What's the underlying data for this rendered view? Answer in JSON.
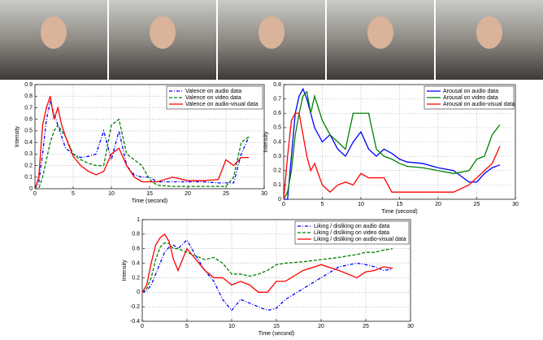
{
  "chart_data": [
    {
      "type": "line",
      "xlabel": "Time (second)",
      "ylabel": "Intensity",
      "x": [
        0,
        0.5,
        1,
        1.5,
        2,
        2.5,
        3,
        3.5,
        4,
        5,
        6,
        7,
        8,
        9,
        10,
        11,
        12,
        13,
        14,
        15,
        16,
        18,
        20,
        22,
        24,
        25,
        26,
        27,
        28
      ],
      "xlim": [
        0,
        30
      ],
      "xticks": [
        0,
        5,
        10,
        15,
        20,
        25,
        30
      ],
      "ylim": [
        0,
        0.9
      ],
      "yticks": [
        0,
        0.1,
        0.2,
        0.3,
        0.4,
        0.5,
        0.6,
        0.7,
        0.8,
        0.9
      ],
      "grid": true,
      "legend": "upper right",
      "series": [
        {
          "name": "Valence on audio data",
          "color": "#0000ff",
          "dash": "dashdot",
          "values": [
            0,
            0.05,
            0.3,
            0.6,
            0.75,
            0.65,
            0.55,
            0.45,
            0.35,
            0.3,
            0.27,
            0.28,
            0.3,
            0.5,
            0.25,
            0.5,
            0.2,
            0.12,
            0.1,
            0.1,
            0.06,
            0.06,
            0.06,
            0.06,
            0.05,
            0.05,
            0.05,
            0.3,
            0.45
          ]
        },
        {
          "name": "Valence on video data",
          "color": "#008000",
          "dash": "dashed",
          "values": [
            0,
            0,
            0.1,
            0.25,
            0.4,
            0.5,
            0.55,
            0.5,
            0.45,
            0.3,
            0.25,
            0.22,
            0.2,
            0.2,
            0.55,
            0.6,
            0.3,
            0.25,
            0.2,
            0.08,
            0.03,
            0.02,
            0.02,
            0.02,
            0.02,
            0.02,
            0.1,
            0.4,
            0.45
          ]
        },
        {
          "name": "Valence on audio-visual data",
          "color": "#ff0000",
          "dash": "solid",
          "values": [
            0,
            0.1,
            0.55,
            0.7,
            0.8,
            0.6,
            0.7,
            0.55,
            0.45,
            0.28,
            0.2,
            0.15,
            0.12,
            0.15,
            0.3,
            0.35,
            0.2,
            0.1,
            0.06,
            0.06,
            0.06,
            0.1,
            0.07,
            0.07,
            0.08,
            0.25,
            0.2,
            0.27,
            0.27
          ]
        }
      ]
    },
    {
      "type": "line",
      "xlabel": "Time (second)",
      "ylabel": "Intensity",
      "x": [
        0,
        0.5,
        1,
        1.5,
        2,
        2.5,
        3,
        3.5,
        4,
        5,
        6,
        7,
        8,
        9,
        10,
        11,
        12,
        13,
        14,
        15,
        16,
        18,
        20,
        22,
        24,
        25,
        26,
        27,
        28
      ],
      "xlim": [
        0,
        30
      ],
      "xticks": [
        0,
        5,
        10,
        15,
        20,
        25,
        30
      ],
      "ylim": [
        0,
        0.8
      ],
      "yticks": [
        0,
        0.1,
        0.2,
        0.3,
        0.4,
        0.5,
        0.6,
        0.7,
        0.8
      ],
      "grid": true,
      "legend": "upper right",
      "series": [
        {
          "name": "Arousal on audio data",
          "color": "#0000ff",
          "dash": "solid",
          "values": [
            0,
            0,
            0.3,
            0.6,
            0.72,
            0.77,
            0.7,
            0.6,
            0.5,
            0.4,
            0.45,
            0.35,
            0.3,
            0.4,
            0.47,
            0.35,
            0.3,
            0.35,
            0.32,
            0.28,
            0.26,
            0.25,
            0.22,
            0.2,
            0.12,
            0.12,
            0.18,
            0.22,
            0.24
          ]
        },
        {
          "name": "Arousal on video data",
          "color": "#008000",
          "dash": "solid",
          "values": [
            0,
            0.05,
            0.2,
            0.45,
            0.6,
            0.72,
            0.75,
            0.6,
            0.72,
            0.55,
            0.45,
            0.4,
            0.35,
            0.6,
            0.6,
            0.6,
            0.35,
            0.3,
            0.28,
            0.25,
            0.23,
            0.22,
            0.2,
            0.18,
            0.2,
            0.28,
            0.3,
            0.45,
            0.52
          ]
        },
        {
          "name": "Arousal on audio-visual data",
          "color": "#ff0000",
          "dash": "solid",
          "values": [
            0,
            0.3,
            0.55,
            0.6,
            0.6,
            0.45,
            0.3,
            0.2,
            0.25,
            0.1,
            0.05,
            0.1,
            0.12,
            0.1,
            0.18,
            0.15,
            0.15,
            0.15,
            0.05,
            0.05,
            0.05,
            0.05,
            0.05,
            0.05,
            0.1,
            0.15,
            0.2,
            0.25,
            0.37
          ]
        }
      ]
    },
    {
      "type": "line",
      "xlabel": "Time (second)",
      "ylabel": "Intensity",
      "x": [
        0,
        0.5,
        1,
        1.5,
        2,
        2.5,
        3,
        3.5,
        4,
        5,
        6,
        7,
        8,
        9,
        10,
        11,
        12,
        13,
        14,
        15,
        16,
        18,
        20,
        22,
        24,
        25,
        26,
        27,
        28
      ],
      "xlim": [
        0,
        30
      ],
      "xticks": [
        0,
        5,
        10,
        15,
        20,
        25,
        30
      ],
      "ylim": [
        -0.4,
        1
      ],
      "yticks": [
        -0.4,
        -0.2,
        0,
        0.2,
        0.4,
        0.6,
        0.8,
        1
      ],
      "grid": true,
      "legend": "upper right",
      "series": [
        {
          "name": "Liking / disliking on audio data",
          "color": "#0000ff",
          "dash": "dashdot",
          "values": [
            0,
            0.02,
            0.1,
            0.25,
            0.4,
            0.55,
            0.62,
            0.65,
            0.6,
            0.72,
            0.5,
            0.3,
            0.15,
            -0.1,
            -0.25,
            -0.1,
            -0.15,
            -0.2,
            -0.25,
            -0.22,
            -0.1,
            0.05,
            0.2,
            0.35,
            0.4,
            0.38,
            0.35,
            0.3,
            0.32
          ]
        },
        {
          "name": "Liking / disliking on video data",
          "color": "#008000",
          "dash": "dashed",
          "values": [
            0,
            0.05,
            0.2,
            0.45,
            0.62,
            0.68,
            0.67,
            0.6,
            0.6,
            0.55,
            0.5,
            0.45,
            0.48,
            0.4,
            0.25,
            0.25,
            0.22,
            0.25,
            0.3,
            0.38,
            0.4,
            0.42,
            0.45,
            0.48,
            0.52,
            0.55,
            0.55,
            0.58,
            0.6
          ]
        },
        {
          "name": "Liking / disliking on audio-visual data",
          "color": "#ff0000",
          "dash": "solid",
          "values": [
            0,
            0.1,
            0.4,
            0.65,
            0.75,
            0.8,
            0.7,
            0.45,
            0.3,
            0.6,
            0.45,
            0.3,
            0.2,
            0.2,
            0.1,
            0.15,
            0.1,
            0,
            0,
            0.15,
            0.15,
            0.3,
            0.38,
            0.3,
            0.2,
            0.28,
            0.3,
            0.35,
            0.33
          ]
        }
      ]
    }
  ]
}
